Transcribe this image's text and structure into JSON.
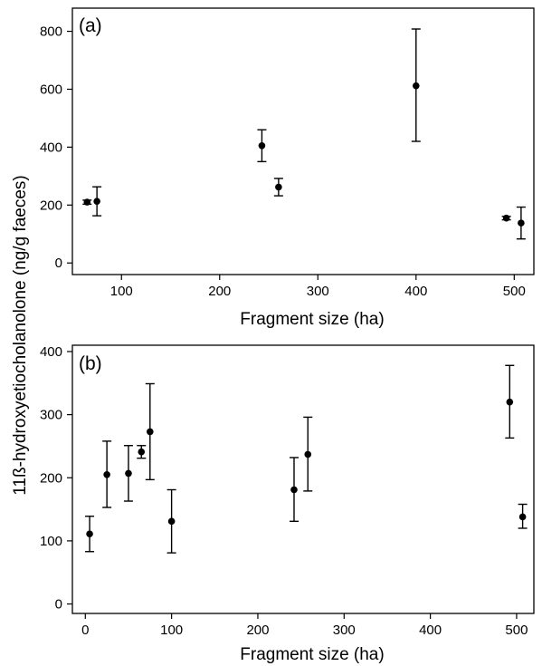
{
  "figure": {
    "ylabel": "11ß-hydroxyetiocholanolone (ng/g faeces)"
  },
  "chart_data": [
    {
      "type": "scatter",
      "panel_label": "(a)",
      "xlabel": "Fragment size (ha)",
      "ylabel": "11ß-hydroxyetiocholanolone (ng/g faeces)",
      "xlim": [
        50,
        520
      ],
      "ylim": [
        -40,
        880
      ],
      "xticks": [
        100,
        200,
        300,
        400,
        500
      ],
      "yticks": [
        0,
        200,
        400,
        600,
        800
      ],
      "grid": false,
      "error_bars": true,
      "series": [
        {
          "x": [
            65,
            75,
            243,
            260,
            400,
            492,
            507
          ],
          "y": [
            210,
            213,
            405,
            262,
            612,
            155,
            138
          ],
          "ylow": [
            203,
            163,
            350,
            232,
            420,
            149,
            83
          ],
          "yhigh": [
            217,
            263,
            460,
            292,
            808,
            161,
            193
          ]
        }
      ]
    },
    {
      "type": "scatter",
      "panel_label": "(b)",
      "xlabel": "Fragment size (ha)",
      "ylabel": "11ß-hydroxyetiocholanolone (ng/g faeces)",
      "xlim": [
        -15,
        520
      ],
      "ylim": [
        -15,
        410
      ],
      "xticks": [
        0,
        100,
        200,
        300,
        400,
        500
      ],
      "yticks": [
        0,
        100,
        200,
        300,
        400
      ],
      "grid": false,
      "error_bars": true,
      "series": [
        {
          "x": [
            5,
            25,
            50,
            65,
            75,
            100,
            242,
            258,
            492,
            507
          ],
          "y": [
            111,
            205,
            207,
            241,
            273,
            131,
            181,
            237,
            320,
            138
          ],
          "ylow": [
            83,
            153,
            163,
            231,
            197,
            81,
            131,
            179,
            263,
            120
          ],
          "yhigh": [
            139,
            258,
            251,
            251,
            349,
            181,
            232,
            296,
            378,
            158
          ]
        }
      ]
    }
  ]
}
